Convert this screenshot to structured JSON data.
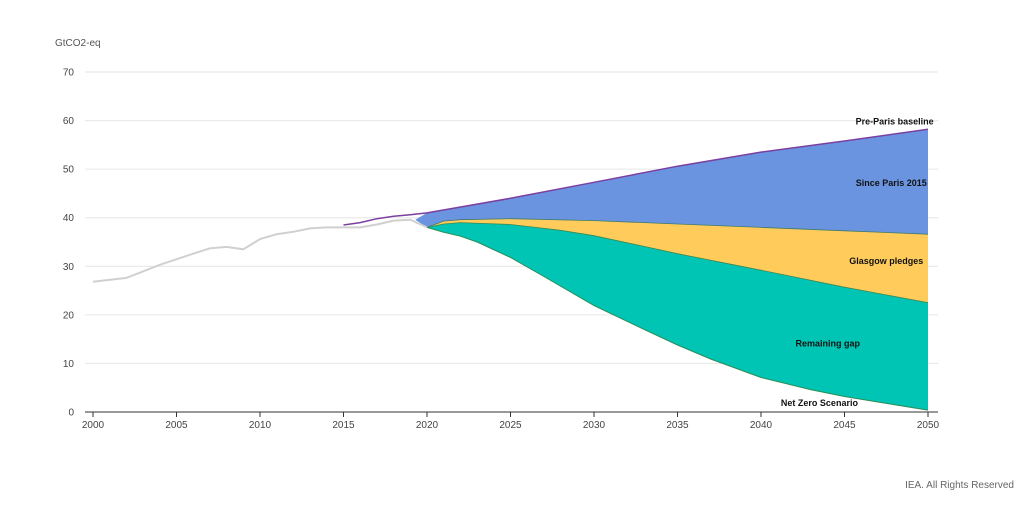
{
  "unit_label": "GtCO2-eq",
  "credit": "IEA. All Rights Reserved",
  "chart_data": {
    "type": "area",
    "ylabel": "GtCO2-eq",
    "xlim": [
      2000,
      2050
    ],
    "ylim": [
      0,
      70
    ],
    "y_ticks": [
      "0",
      "10",
      "20",
      "30",
      "40",
      "50",
      "60",
      "70"
    ],
    "x_ticks": [
      "2000",
      "2005",
      "2010",
      "2015",
      "2020",
      "2025",
      "2030",
      "2035",
      "2040",
      "2045",
      "2050"
    ],
    "grid": true,
    "historical": {
      "color": "#d0d0d0",
      "x": [
        2000,
        2002,
        2004,
        2006,
        2007,
        2008,
        2009,
        2010,
        2011,
        2012,
        2013,
        2014,
        2015,
        2016,
        2017,
        2018,
        2019,
        2020
      ],
      "y": [
        26.8,
        27.6,
        30.3,
        32.6,
        33.7,
        34.0,
        33.5,
        35.6,
        36.6,
        37.1,
        37.8,
        38.0,
        38.0,
        38.0,
        38.6,
        39.4,
        39.6,
        38.0
      ]
    },
    "pre_paris_baseline": {
      "name": "Pre-Paris baseline",
      "color": "#7b3fa0",
      "x": [
        2015,
        2016,
        2017,
        2018,
        2019,
        2020,
        2025,
        2030,
        2035,
        2040,
        2045,
        2050
      ],
      "y": [
        38.5,
        39.0,
        39.8,
        40.3,
        40.6,
        41.0,
        44.0,
        47.3,
        50.6,
        53.5,
        55.8,
        58.2
      ]
    },
    "series": [
      {
        "name": "Since Paris 2015",
        "color": "#6a94e0",
        "x": [
          2019.3,
          2020,
          2021,
          2022,
          2025,
          2030,
          2035,
          2040,
          2045,
          2050
        ],
        "y": [
          39.6,
          38.0,
          39.3,
          39.6,
          39.8,
          39.4,
          38.7,
          38.0,
          37.3,
          36.6
        ]
      },
      {
        "name": "Glasgow pledges",
        "color": "#ffcc5c",
        "x": [
          2020,
          2021,
          2022,
          2025,
          2028,
          2030,
          2033,
          2035,
          2040,
          2045,
          2050
        ],
        "y": [
          38.0,
          38.7,
          39.0,
          38.6,
          37.4,
          36.3,
          34.1,
          32.6,
          29.2,
          25.7,
          22.5
        ]
      },
      {
        "name": "Remaining gap",
        "color": "#00c4b4",
        "x": [
          2020,
          2021,
          2022,
          2023,
          2025,
          2027,
          2030,
          2033,
          2035,
          2037,
          2040,
          2043,
          2045,
          2048,
          2050
        ],
        "y": [
          38.0,
          37.0,
          36.2,
          35.0,
          31.8,
          27.9,
          21.9,
          17.0,
          13.8,
          10.9,
          7.1,
          4.6,
          3.2,
          1.5,
          0.4
        ]
      }
    ],
    "net_zero_scenario": {
      "name": "Net Zero Scenario",
      "color": "#2e8b57"
    },
    "annotations": [
      {
        "text": "Pre-Paris baseline",
        "x": 2048,
        "y": 59.2
      },
      {
        "text": "Since Paris 2015",
        "x": 2047.8,
        "y": 46.5
      },
      {
        "text": "Glasgow pledges",
        "x": 2047.5,
        "y": 30.5
      },
      {
        "text": "Remaining gap",
        "x": 2044,
        "y": 13.5
      },
      {
        "text": "Net Zero Scenario",
        "x": 2043.5,
        "y": 1.2
      }
    ]
  }
}
